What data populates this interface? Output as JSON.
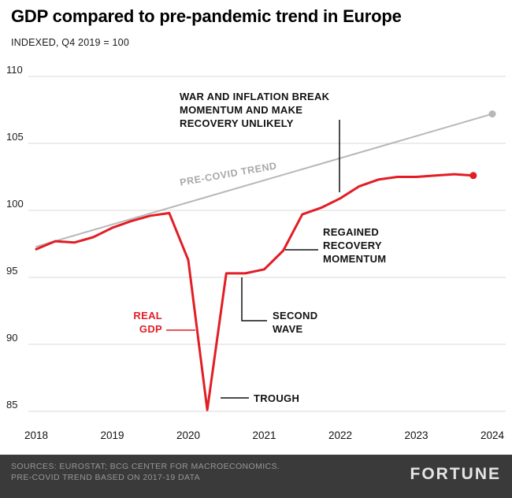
{
  "chart_data": {
    "type": "line",
    "title": "GDP compared to pre-pandemic trend in Europe",
    "subtitle": "INDEXED, Q4 2019 = 100",
    "x_ticks": [
      "2018",
      "2019",
      "2020",
      "2021",
      "2022",
      "2023",
      "2024"
    ],
    "x_tick_positions": [
      2018,
      2019,
      2020,
      2021,
      2022,
      2023,
      2024
    ],
    "y_ticks": [
      110,
      105,
      100,
      95,
      90,
      85
    ],
    "ylim": [
      83.5,
      110.8
    ],
    "xlim": [
      2017.9,
      2024.15
    ],
    "grid": "horizontal",
    "grid_color": "#d9d9d9",
    "series": [
      {
        "name": "PRE-COVID TREND",
        "color": "#b7b7b7",
        "stroke_width": 2,
        "end_dot": true,
        "x": [
          2018.0,
          2024.0
        ],
        "values": [
          97.3,
          107.2
        ]
      },
      {
        "name": "REAL GDP",
        "color": "#e21d25",
        "stroke_width": 3,
        "end_dot": true,
        "x": [
          2018.0,
          2018.25,
          2018.5,
          2018.75,
          2019.0,
          2019.25,
          2019.5,
          2019.75,
          2020.0,
          2020.25,
          2020.5,
          2020.75,
          2021.0,
          2021.25,
          2021.5,
          2021.75,
          2022.0,
          2022.25,
          2022.5,
          2022.75,
          2023.0,
          2023.25,
          2023.5,
          2023.75
        ],
        "values": [
          97.1,
          97.7,
          97.6,
          98.0,
          98.7,
          99.2,
          99.6,
          99.8,
          96.3,
          85.1,
          95.3,
          95.3,
          95.6,
          97.0,
          99.7,
          100.2,
          100.9,
          101.8,
          102.3,
          102.5,
          102.5,
          102.6,
          102.7,
          102.6
        ]
      }
    ],
    "annotations": [
      {
        "id": "war",
        "lines": [
          "WAR AND INFLATION BREAK",
          "MOMENTUM AND MAKE",
          "RECOVERY UNLIKELY"
        ],
        "color": "#111111"
      },
      {
        "id": "pre-covid-trend",
        "lines": [
          "PRE-COVID TREND"
        ],
        "color": "#a8a8a8"
      },
      {
        "id": "regained",
        "lines": [
          "REGAINED",
          "RECOVERY",
          "MOMENTUM"
        ],
        "color": "#111111"
      },
      {
        "id": "real-gdp",
        "lines": [
          "REAL",
          "GDP"
        ],
        "color": "#e21d25"
      },
      {
        "id": "second-wave",
        "lines": [
          "SECOND",
          "WAVE"
        ],
        "color": "#111111"
      },
      {
        "id": "trough",
        "lines": [
          "TROUGH"
        ],
        "color": "#111111"
      }
    ]
  },
  "footer": {
    "source_line1": "SOURCES: EUROSTAT; BCG CENTER FOR MACROECONOMICS.",
    "source_line2": "PRE-COVID TREND BASED ON 2017-19 DATA",
    "brand": "FORTUNE",
    "background": "#3a3a3a"
  }
}
